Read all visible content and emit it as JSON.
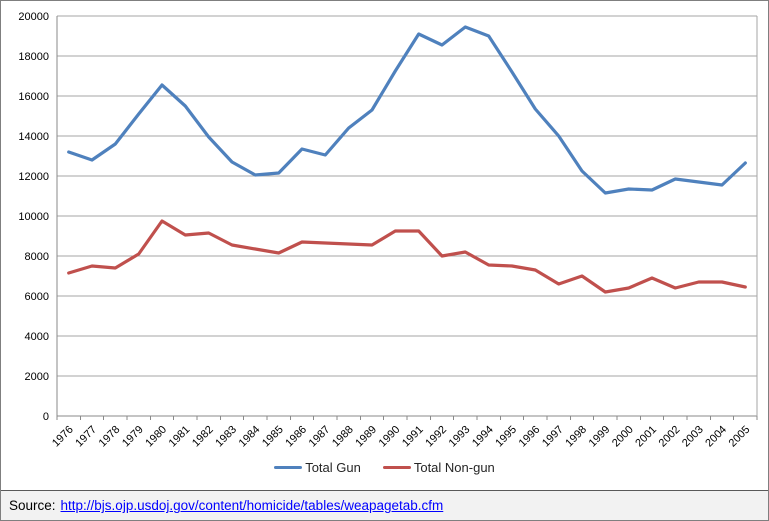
{
  "chart_data": {
    "type": "line",
    "title": "",
    "xlabel": "",
    "ylabel": "",
    "x": [
      "1976",
      "1977",
      "1978",
      "1979",
      "1980",
      "1981",
      "1982",
      "1983",
      "1984",
      "1985",
      "1986",
      "1987",
      "1988",
      "1989",
      "1990",
      "1991",
      "1992",
      "1993",
      "1994",
      "1995",
      "1996",
      "1997",
      "1998",
      "1999",
      "2000",
      "2001",
      "2002",
      "2003",
      "2004",
      "2005"
    ],
    "series": [
      {
        "name": "Total Gun",
        "color": "#4F81BD",
        "values": [
          13200,
          12800,
          13600,
          15100,
          16550,
          15500,
          13950,
          12700,
          12050,
          12150,
          13350,
          13050,
          14400,
          15300,
          17250,
          19100,
          18550,
          19450,
          19000,
          17200,
          15350,
          14000,
          12250,
          11150,
          11350,
          11300,
          11850,
          11700,
          11550,
          12650
        ]
      },
      {
        "name": "Total Non-gun",
        "color": "#C0504D",
        "values": [
          7150,
          7500,
          7400,
          8100,
          9750,
          9050,
          9150,
          8550,
          8350,
          8150,
          8700,
          8650,
          8600,
          8550,
          9250,
          9250,
          8000,
          8200,
          7550,
          7500,
          7300,
          6600,
          7000,
          6200,
          6400,
          6900,
          6400,
          6700,
          6700,
          6450
        ]
      }
    ],
    "ylim": [
      0,
      20000
    ],
    "ytick_step": 2000,
    "grid": true,
    "legend_position": "bottom",
    "gridline_color": "#A6A6A6",
    "axis_color": "#898989",
    "label_color": "#000000"
  },
  "source_bar": {
    "label": "Source:",
    "link_text": "http://bjs.ojp.usdoj.gov/content/homicide/tables/weapagetab.cfm",
    "link_color": "#0000FF",
    "background": "#F2F2F2"
  }
}
